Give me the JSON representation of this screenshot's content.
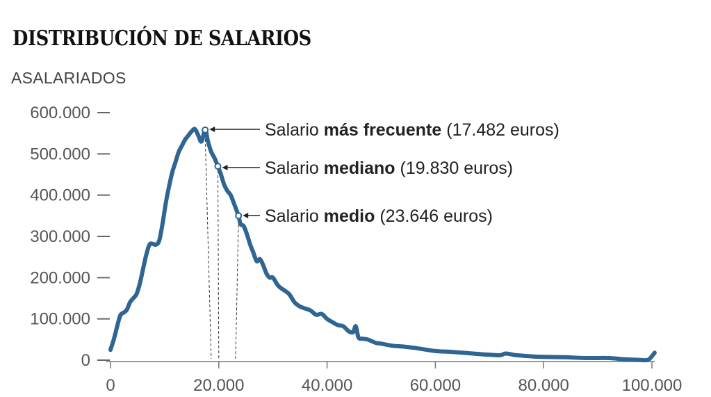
{
  "chart_data": {
    "type": "line",
    "title": "DISTRIBUCIÓN DE SALARIOS",
    "ylabel": "ASALARIADOS",
    "xlim": [
      0,
      100000
    ],
    "ylim": [
      0,
      600000
    ],
    "x_ticks": [
      0,
      20000,
      40000,
      60000,
      80000,
      100000
    ],
    "x_tick_labels": [
      "0",
      "20.000",
      "40.000",
      "60.000",
      "80.000",
      "100.000"
    ],
    "y_ticks": [
      0,
      100000,
      200000,
      300000,
      400000,
      500000,
      600000
    ],
    "y_tick_labels": [
      "0",
      "100.000",
      "200.000",
      "300.000",
      "400.000",
      "500.000",
      "600.000"
    ],
    "line_color": "#2e6592",
    "series": [
      {
        "x": [
          0,
          600,
          1200,
          1800,
          2400,
          3000,
          3600,
          4200,
          4800,
          5400,
          6000,
          6600,
          7200,
          7800,
          8400,
          9000,
          9600,
          10200,
          10800,
          11400,
          12000,
          12600,
          13200,
          13800,
          14400,
          15000,
          15600,
          16200,
          16800,
          17482,
          18000,
          18600,
          19200,
          19830,
          20400,
          21000,
          21600,
          22200,
          22800,
          23646,
          24000,
          24600,
          25200,
          25800,
          26400,
          27000,
          27600,
          28200,
          28800,
          29400,
          30000,
          31000,
          32000,
          33000,
          34000,
          35000,
          36000,
          37000,
          38000,
          39000,
          40000,
          41000,
          42000,
          43000,
          44000,
          44800,
          45300,
          45800,
          46500,
          47500,
          49000,
          50000,
          52000,
          54000,
          56000,
          58000,
          60000,
          63000,
          66000,
          70000,
          72000,
          73000,
          75000,
          78000,
          80000,
          84000,
          88000,
          92000,
          95000,
          97000,
          99000,
          99700,
          100500
        ],
        "y": [
          25000,
          50000,
          80000,
          108000,
          115000,
          122000,
          140000,
          150000,
          160000,
          185000,
          220000,
          255000,
          280000,
          282000,
          280000,
          290000,
          330000,
          380000,
          420000,
          455000,
          480000,
          505000,
          520000,
          535000,
          545000,
          555000,
          560000,
          545000,
          530000,
          558000,
          530000,
          505000,
          490000,
          470000,
          450000,
          425000,
          410000,
          400000,
          380000,
          350000,
          330000,
          325000,
          305000,
          280000,
          260000,
          240000,
          245000,
          230000,
          210000,
          200000,
          200000,
          180000,
          170000,
          160000,
          140000,
          130000,
          125000,
          120000,
          110000,
          112000,
          100000,
          92000,
          85000,
          82000,
          70000,
          68000,
          82000,
          55000,
          52000,
          50000,
          42000,
          40000,
          35000,
          33000,
          30000,
          26000,
          22000,
          20000,
          17000,
          13000,
          12000,
          16000,
          12000,
          9000,
          8000,
          7000,
          5000,
          5000,
          2000,
          1000,
          0,
          5000,
          18000
        ]
      }
    ],
    "markers": [
      {
        "x": 17482,
        "y": 558000
      },
      {
        "x": 19830,
        "y": 470000
      },
      {
        "x": 23646,
        "y": 350000
      }
    ],
    "annotations": [
      {
        "prefix": "Salario ",
        "bold": "más frecuente",
        "suffix": " (17.482 euros)"
      },
      {
        "prefix": "Salario ",
        "bold": "mediano",
        "suffix": " (19.830 euros)"
      },
      {
        "prefix": "Salario ",
        "bold": "medio",
        "suffix": " (23.646 euros)"
      }
    ],
    "dropline_x_at_base": [
      18600,
      20000,
      23100
    ]
  }
}
